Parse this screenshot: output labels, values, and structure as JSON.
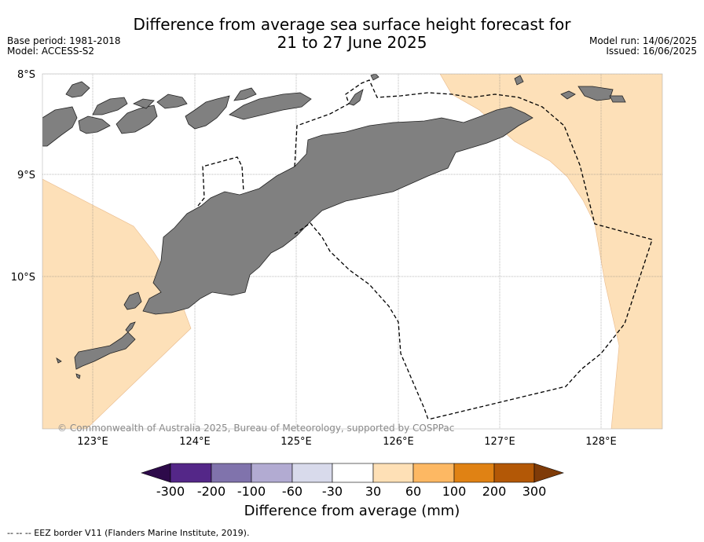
{
  "header": {
    "title": "Difference from average sea surface height forecast for\n21 to 27 June 2025",
    "base_period": "Base period: 1981-2018",
    "model": "Model: ACCESS-S2",
    "model_run": "Model run: 14/06/2025",
    "issued": "Issued: 16/06/2025"
  },
  "map": {
    "lat_labels": [
      "8°S",
      "9°S",
      "10°S"
    ],
    "lon_labels": [
      "123°E",
      "124°E",
      "125°E",
      "126°E",
      "127°E",
      "128°E"
    ],
    "copyright": "© Commonwealth of Australia 2025, Bureau of Meteorology, supported by COSPPac",
    "land_color": "#808080",
    "anomaly_30_60_color": "#fde0b8"
  },
  "colorbar": {
    "title": "Difference from average (mm)",
    "tick_labels": [
      "-300",
      "-200",
      "-100",
      "-60",
      "-30",
      "30",
      "60",
      "100",
      "200",
      "300"
    ],
    "colors": [
      "#2d0a4a",
      "#542788",
      "#8073ac",
      "#b2abd2",
      "#d8daeb",
      "#ffffff",
      "#fee0b6",
      "#fdb863",
      "#e08214",
      "#b35806",
      "#7f3b08"
    ]
  },
  "legend": {
    "eez_label": "-- -- -- EEZ border V11 (Flanders Marine Institute, 2019)."
  }
}
